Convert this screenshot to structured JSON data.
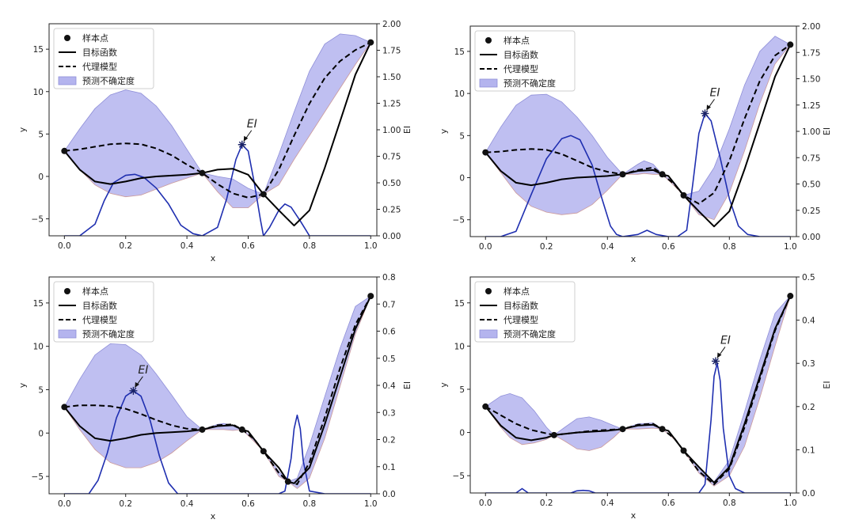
{
  "chart_data": [
    {
      "type": "line",
      "xlabel": "x",
      "ylabel": "y",
      "y2label": "EI",
      "xlim": [
        -0.05,
        1.02
      ],
      "ylim": [
        -7,
        18
      ],
      "y2lim": [
        0,
        2.0
      ],
      "xticks": [
        "0.0",
        "0.2",
        "0.4",
        "0.6",
        "0.8",
        "1.0"
      ],
      "yticks": [
        "−5",
        "0",
        "5",
        "10",
        "15"
      ],
      "y2ticks": [
        "0.00",
        "0.25",
        "0.50",
        "0.75",
        "1.00",
        "1.25",
        "1.50",
        "1.75",
        "2.00"
      ],
      "legend": {
        "position": "top-left",
        "entries": [
          "样本点",
          "目标函数",
          "代理模型",
          "预测不确定度"
        ]
      },
      "annotation": "EI",
      "sample_points": {
        "x": [
          0.0,
          0.45,
          0.65,
          1.0
        ],
        "y": [
          3.0,
          0.4,
          -2.1,
          15.8
        ]
      },
      "target_function": {
        "x": [
          0.0,
          0.05,
          0.1,
          0.15,
          0.2,
          0.25,
          0.3,
          0.35,
          0.4,
          0.45,
          0.5,
          0.55,
          0.6,
          0.65,
          0.7,
          0.75,
          0.8,
          0.85,
          0.9,
          0.95,
          1.0
        ],
        "y": [
          3.0,
          0.8,
          -0.6,
          -0.9,
          -0.6,
          -0.2,
          0.0,
          0.1,
          0.2,
          0.4,
          0.8,
          0.9,
          0.2,
          -2.1,
          -4.0,
          -5.8,
          -4.0,
          1.0,
          6.5,
          12.0,
          15.8
        ]
      },
      "surrogate_model": {
        "x": [
          0.0,
          0.05,
          0.1,
          0.15,
          0.2,
          0.25,
          0.3,
          0.35,
          0.4,
          0.45,
          0.5,
          0.55,
          0.6,
          0.65,
          0.7,
          0.75,
          0.8,
          0.85,
          0.9,
          0.95,
          1.0
        ],
        "y": [
          3.0,
          3.2,
          3.5,
          3.8,
          3.9,
          3.8,
          3.3,
          2.5,
          1.4,
          0.4,
          -0.9,
          -2.0,
          -2.5,
          -2.1,
          0.8,
          4.8,
          8.6,
          11.6,
          13.6,
          14.9,
          15.8
        ]
      },
      "uncertainty_band": {
        "x": [
          0.0,
          0.05,
          0.1,
          0.15,
          0.2,
          0.25,
          0.3,
          0.35,
          0.4,
          0.45,
          0.5,
          0.55,
          0.6,
          0.65,
          0.7,
          0.75,
          0.8,
          0.85,
          0.9,
          0.95,
          1.0
        ],
        "upper": [
          3.0,
          5.6,
          8.0,
          9.6,
          10.2,
          9.8,
          8.3,
          6.0,
          3.2,
          0.4,
          0.0,
          -0.3,
          -1.4,
          -2.1,
          2.6,
          7.6,
          12.4,
          15.6,
          16.8,
          16.6,
          15.8
        ],
        "lower": [
          3.0,
          0.8,
          -1.0,
          -2.0,
          -2.4,
          -2.2,
          -1.5,
          -0.8,
          -0.2,
          0.4,
          -1.8,
          -3.7,
          -3.7,
          -2.1,
          -1.0,
          2.0,
          4.8,
          7.6,
          10.4,
          13.2,
          15.8
        ]
      },
      "ei": {
        "x": [
          0.0,
          0.05,
          0.1,
          0.13,
          0.16,
          0.2,
          0.23,
          0.26,
          0.3,
          0.34,
          0.38,
          0.42,
          0.45,
          0.5,
          0.53,
          0.56,
          0.58,
          0.6,
          0.62,
          0.64,
          0.65,
          0.67,
          0.7,
          0.72,
          0.74,
          0.77,
          0.8,
          0.85,
          0.9,
          1.0
        ],
        "y": [
          0.0,
          0.0,
          0.11,
          0.33,
          0.5,
          0.57,
          0.58,
          0.55,
          0.45,
          0.3,
          0.1,
          0.02,
          0.0,
          0.08,
          0.35,
          0.72,
          0.86,
          0.8,
          0.5,
          0.15,
          0.0,
          0.08,
          0.24,
          0.3,
          0.27,
          0.14,
          0.0,
          0.0,
          0.0,
          0.0
        ]
      },
      "ei_max": {
        "x": 0.58,
        "y": 0.86
      }
    },
    {
      "type": "line",
      "xlabel": "x",
      "ylabel": "y",
      "y2label": "EI",
      "xlim": [
        -0.05,
        1.02
      ],
      "ylim": [
        -7,
        18
      ],
      "y2lim": [
        0,
        2.0
      ],
      "xticks": [
        "0.0",
        "0.2",
        "0.4",
        "0.6",
        "0.8",
        "1.0"
      ],
      "yticks": [
        "−5",
        "0",
        "5",
        "10",
        "15"
      ],
      "y2ticks": [
        "0.00",
        "0.25",
        "0.50",
        "0.75",
        "1.00",
        "1.25",
        "1.50",
        "1.75",
        "2.00"
      ],
      "legend": {
        "position": "top-left",
        "entries": [
          "样本点",
          "目标函数",
          "代理模型",
          "预测不确定度"
        ]
      },
      "annotation": "EI",
      "sample_points": {
        "x": [
          0.0,
          0.45,
          0.58,
          0.65,
          1.0
        ],
        "y": [
          3.0,
          0.4,
          0.4,
          -2.1,
          15.8
        ]
      },
      "target_function": {
        "x": [
          0.0,
          0.05,
          0.1,
          0.15,
          0.2,
          0.25,
          0.3,
          0.35,
          0.4,
          0.45,
          0.5,
          0.55,
          0.58,
          0.6,
          0.65,
          0.7,
          0.75,
          0.8,
          0.85,
          0.9,
          0.95,
          1.0
        ],
        "y": [
          3.0,
          0.8,
          -0.6,
          -0.9,
          -0.6,
          -0.2,
          0.0,
          0.1,
          0.2,
          0.4,
          0.8,
          0.9,
          0.4,
          0.2,
          -2.1,
          -4.0,
          -5.8,
          -4.0,
          1.0,
          6.5,
          12.0,
          15.8
        ]
      },
      "surrogate_model": {
        "x": [
          0.0,
          0.05,
          0.1,
          0.15,
          0.2,
          0.25,
          0.3,
          0.35,
          0.4,
          0.45,
          0.5,
          0.55,
          0.58,
          0.62,
          0.65,
          0.7,
          0.75,
          0.8,
          0.85,
          0.9,
          0.95,
          1.0
        ],
        "y": [
          3.0,
          3.1,
          3.3,
          3.4,
          3.3,
          2.8,
          2.0,
          1.2,
          0.7,
          0.4,
          0.9,
          1.2,
          0.4,
          -0.8,
          -2.1,
          -3.1,
          -1.8,
          2.0,
          7.0,
          11.5,
          14.5,
          15.8
        ]
      },
      "uncertainty_band": {
        "x": [
          0.0,
          0.05,
          0.1,
          0.15,
          0.2,
          0.25,
          0.3,
          0.35,
          0.4,
          0.45,
          0.5,
          0.52,
          0.55,
          0.58,
          0.62,
          0.65,
          0.7,
          0.75,
          0.8,
          0.85,
          0.9,
          0.95,
          1.0
        ],
        "upper": [
          3.0,
          6.0,
          8.6,
          9.8,
          9.9,
          9.0,
          7.2,
          5.0,
          2.4,
          0.4,
          1.6,
          2.0,
          1.6,
          0.4,
          -0.6,
          -2.1,
          -1.6,
          1.2,
          5.8,
          11.0,
          15.0,
          16.8,
          15.8
        ],
        "lower": [
          3.0,
          0.6,
          -1.8,
          -3.4,
          -4.1,
          -4.4,
          -4.2,
          -3.2,
          -1.5,
          0.4,
          0.4,
          0.5,
          0.4,
          0.4,
          -1.0,
          -2.1,
          -4.4,
          -5.0,
          -1.8,
          3.2,
          8.8,
          13.5,
          15.8
        ]
      },
      "ei": {
        "x": [
          0.0,
          0.05,
          0.1,
          0.15,
          0.2,
          0.25,
          0.28,
          0.31,
          0.35,
          0.38,
          0.41,
          0.43,
          0.45,
          0.5,
          0.53,
          0.56,
          0.6,
          0.63,
          0.66,
          0.68,
          0.7,
          0.72,
          0.74,
          0.77,
          0.8,
          0.83,
          0.86,
          0.9,
          1.0
        ],
        "y": [
          0.0,
          0.0,
          0.05,
          0.4,
          0.74,
          0.93,
          0.96,
          0.92,
          0.68,
          0.38,
          0.1,
          0.02,
          0.0,
          0.02,
          0.06,
          0.02,
          0.0,
          0.0,
          0.06,
          0.5,
          0.98,
          1.17,
          1.1,
          0.75,
          0.36,
          0.1,
          0.02,
          0.0,
          0.0
        ]
      },
      "ei_max": {
        "x": 0.72,
        "y": 1.17
      }
    },
    {
      "type": "line",
      "xlabel": "x",
      "ylabel": "y",
      "y2label": "EI",
      "xlim": [
        -0.05,
        1.02
      ],
      "ylim": [
        -7,
        18
      ],
      "y2lim": [
        0,
        0.8
      ],
      "xticks": [
        "0.0",
        "0.2",
        "0.4",
        "0.6",
        "0.8",
        "1.0"
      ],
      "yticks": [
        "−5",
        "0",
        "5",
        "10",
        "15"
      ],
      "y2ticks": [
        "0.0",
        "0.1",
        "0.2",
        "0.3",
        "0.4",
        "0.5",
        "0.6",
        "0.7",
        "0.8"
      ],
      "legend": {
        "position": "top-left",
        "entries": [
          "样本点",
          "目标函数",
          "代理模型",
          "预测不确定度"
        ]
      },
      "annotation": "EI",
      "sample_points": {
        "x": [
          0.0,
          0.45,
          0.58,
          0.65,
          0.73,
          1.0
        ],
        "y": [
          3.0,
          0.4,
          0.4,
          -2.1,
          -5.6,
          15.8
        ]
      },
      "target_function": {
        "x": [
          0.0,
          0.05,
          0.1,
          0.15,
          0.2,
          0.25,
          0.3,
          0.35,
          0.4,
          0.45,
          0.5,
          0.55,
          0.58,
          0.6,
          0.65,
          0.7,
          0.73,
          0.75,
          0.8,
          0.85,
          0.9,
          0.95,
          1.0
        ],
        "y": [
          3.0,
          0.8,
          -0.6,
          -0.9,
          -0.6,
          -0.2,
          0.0,
          0.1,
          0.2,
          0.4,
          0.8,
          0.9,
          0.4,
          0.2,
          -2.1,
          -4.0,
          -5.6,
          -5.8,
          -4.0,
          1.0,
          6.5,
          12.0,
          15.8
        ]
      },
      "surrogate_model": {
        "x": [
          0.0,
          0.05,
          0.1,
          0.15,
          0.2,
          0.25,
          0.3,
          0.35,
          0.4,
          0.45,
          0.5,
          0.55,
          0.58,
          0.62,
          0.65,
          0.7,
          0.73,
          0.76,
          0.8,
          0.85,
          0.9,
          0.95,
          1.0
        ],
        "y": [
          3.0,
          3.2,
          3.2,
          3.1,
          2.8,
          2.2,
          1.5,
          0.9,
          0.5,
          0.4,
          0.9,
          1.0,
          0.4,
          -0.7,
          -2.1,
          -4.6,
          -5.6,
          -5.9,
          -3.4,
          1.8,
          7.5,
          12.5,
          15.8
        ]
      },
      "uncertainty_band": {
        "x": [
          0.0,
          0.05,
          0.1,
          0.15,
          0.2,
          0.25,
          0.3,
          0.35,
          0.4,
          0.45,
          0.5,
          0.52,
          0.55,
          0.58,
          0.62,
          0.65,
          0.7,
          0.73,
          0.76,
          0.8,
          0.85,
          0.9,
          0.95,
          1.0
        ],
        "upper": [
          3.0,
          6.2,
          9.0,
          10.3,
          10.2,
          9.0,
          6.8,
          4.4,
          1.9,
          0.4,
          1.0,
          1.1,
          0.9,
          0.4,
          -0.7,
          -2.1,
          -4.4,
          -5.6,
          -5.2,
          -1.4,
          4.2,
          9.8,
          14.6,
          15.8
        ],
        "lower": [
          3.0,
          0.4,
          -1.9,
          -3.4,
          -4.0,
          -4.0,
          -3.4,
          -2.3,
          -0.9,
          0.4,
          0.4,
          0.4,
          0.3,
          0.4,
          -1.0,
          -2.1,
          -5.0,
          -5.6,
          -6.4,
          -5.2,
          -0.6,
          5.4,
          11.4,
          15.8
        ]
      },
      "ei": {
        "x": [
          0.0,
          0.08,
          0.11,
          0.14,
          0.17,
          0.2,
          0.225,
          0.25,
          0.28,
          0.31,
          0.34,
          0.37,
          0.4,
          0.45,
          0.6,
          0.7,
          0.72,
          0.74,
          0.75,
          0.76,
          0.77,
          0.78,
          0.8,
          0.85,
          1.0
        ],
        "y": [
          0.0,
          0.0,
          0.05,
          0.15,
          0.28,
          0.36,
          0.38,
          0.36,
          0.27,
          0.14,
          0.04,
          0.0,
          0.0,
          0.0,
          0.0,
          0.0,
          0.01,
          0.13,
          0.24,
          0.29,
          0.24,
          0.12,
          0.01,
          0.0,
          0.0
        ]
      },
      "ei_max": {
        "x": 0.225,
        "y": 0.38
      }
    },
    {
      "type": "line",
      "xlabel": "x",
      "ylabel": "y",
      "y2label": "EI",
      "xlim": [
        -0.05,
        1.02
      ],
      "ylim": [
        -7,
        18
      ],
      "y2lim": [
        0,
        0.5
      ],
      "xticks": [
        "0.0",
        "0.2",
        "0.4",
        "0.6",
        "0.8",
        "1.0"
      ],
      "yticks": [
        "−5",
        "0",
        "5",
        "10",
        "15"
      ],
      "y2ticks": [
        "0.0",
        "0.1",
        "0.2",
        "0.3",
        "0.4",
        "0.5"
      ],
      "legend": {
        "position": "top-left",
        "entries": [
          "样本点",
          "目标函数",
          "代理模型",
          "预测不确定度"
        ]
      },
      "annotation": "EI",
      "sample_points": {
        "x": [
          0.0,
          0.225,
          0.45,
          0.58,
          0.65,
          1.0
        ],
        "y": [
          3.0,
          -0.3,
          0.4,
          0.4,
          -2.1,
          15.8
        ]
      },
      "target_function": {
        "x": [
          0.0,
          0.05,
          0.1,
          0.15,
          0.2,
          0.225,
          0.25,
          0.3,
          0.35,
          0.4,
          0.45,
          0.5,
          0.55,
          0.58,
          0.6,
          0.65,
          0.7,
          0.75,
          0.8,
          0.85,
          0.9,
          0.95,
          1.0
        ],
        "y": [
          3.0,
          0.8,
          -0.6,
          -0.9,
          -0.6,
          -0.3,
          -0.2,
          0.0,
          0.1,
          0.2,
          0.4,
          0.8,
          0.9,
          0.4,
          0.2,
          -2.1,
          -4.0,
          -5.8,
          -4.0,
          1.0,
          6.5,
          12.0,
          15.8
        ]
      },
      "surrogate_model": {
        "x": [
          0.0,
          0.05,
          0.1,
          0.15,
          0.2,
          0.225,
          0.25,
          0.3,
          0.35,
          0.4,
          0.45,
          0.5,
          0.55,
          0.58,
          0.62,
          0.65,
          0.7,
          0.75,
          0.8,
          0.85,
          0.9,
          0.95,
          1.0
        ],
        "y": [
          3.0,
          2.0,
          1.0,
          0.3,
          -0.1,
          -0.3,
          -0.2,
          0.0,
          0.2,
          0.3,
          0.4,
          0.9,
          1.0,
          0.4,
          -0.7,
          -2.1,
          -4.5,
          -6.0,
          -4.2,
          0.6,
          6.2,
          11.8,
          15.8
        ]
      },
      "uncertainty_band": {
        "x": [
          0.0,
          0.05,
          0.08,
          0.12,
          0.16,
          0.2,
          0.225,
          0.26,
          0.3,
          0.34,
          0.38,
          0.42,
          0.45,
          0.5,
          0.55,
          0.58,
          0.62,
          0.65,
          0.7,
          0.75,
          0.8,
          0.85,
          0.9,
          0.95,
          1.0
        ],
        "upper": [
          3.0,
          4.2,
          4.5,
          4.0,
          2.5,
          0.6,
          -0.3,
          0.6,
          1.6,
          1.8,
          1.4,
          0.8,
          0.4,
          1.0,
          1.1,
          0.4,
          -0.7,
          -2.1,
          -4.1,
          -5.7,
          -3.2,
          2.4,
          8.4,
          13.8,
          15.8
        ],
        "lower": [
          3.0,
          0.6,
          -0.6,
          -1.4,
          -1.2,
          -0.8,
          -0.3,
          -1.0,
          -1.9,
          -2.1,
          -1.7,
          -0.6,
          0.4,
          0.4,
          0.5,
          0.4,
          -0.8,
          -2.1,
          -4.7,
          -6.2,
          -5.0,
          -1.6,
          4.0,
          10.0,
          15.8
        ]
      },
      "ei": {
        "x": [
          0.0,
          0.1,
          0.12,
          0.14,
          0.16,
          0.28,
          0.3,
          0.32,
          0.34,
          0.36,
          0.6,
          0.7,
          0.72,
          0.74,
          0.75,
          0.76,
          0.77,
          0.78,
          0.8,
          0.82,
          0.85,
          1.0
        ],
        "y": [
          0.0,
          0.0,
          0.01,
          0.0,
          0.0,
          0.0,
          0.005,
          0.006,
          0.005,
          0.0,
          0.0,
          0.0,
          0.02,
          0.17,
          0.27,
          0.3,
          0.26,
          0.15,
          0.04,
          0.01,
          0.0,
          0.0
        ]
      },
      "ei_max": {
        "x": 0.755,
        "y": 0.305
      }
    }
  ]
}
